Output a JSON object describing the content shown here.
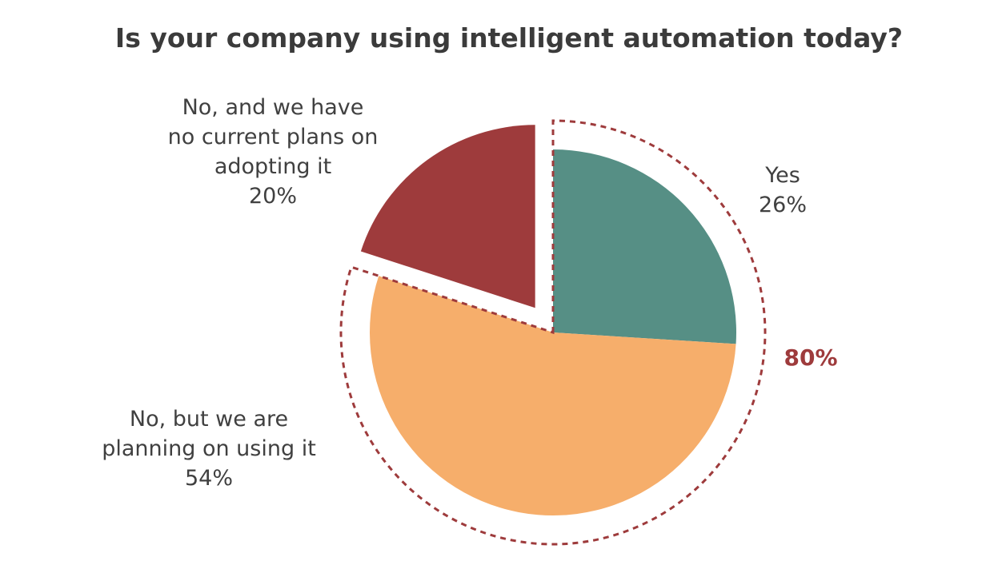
{
  "chart_data": {
    "type": "pie",
    "title": "Is your company using intelligent automation today?",
    "slices": [
      {
        "label_lines": [
          "Yes"
        ],
        "value": 26,
        "value_label": "26%",
        "color": "#568f85",
        "exploded": false
      },
      {
        "label_lines": [
          "No, but we are",
          "planning on using it"
        ],
        "value": 54,
        "value_label": "54%",
        "color": "#f6ae6b",
        "exploded": false
      },
      {
        "label_lines": [
          "No, and we have",
          "no current plans on",
          "adopting it"
        ],
        "value": 20,
        "value_label": "20%",
        "color": "#9e3b3c",
        "exploded": true
      }
    ],
    "group_annotation": {
      "label": "80%",
      "covers_slices": [
        "Yes",
        "No, but we are planning on using it"
      ],
      "color": "#9e3b3c",
      "style": "dashed-outline"
    }
  }
}
